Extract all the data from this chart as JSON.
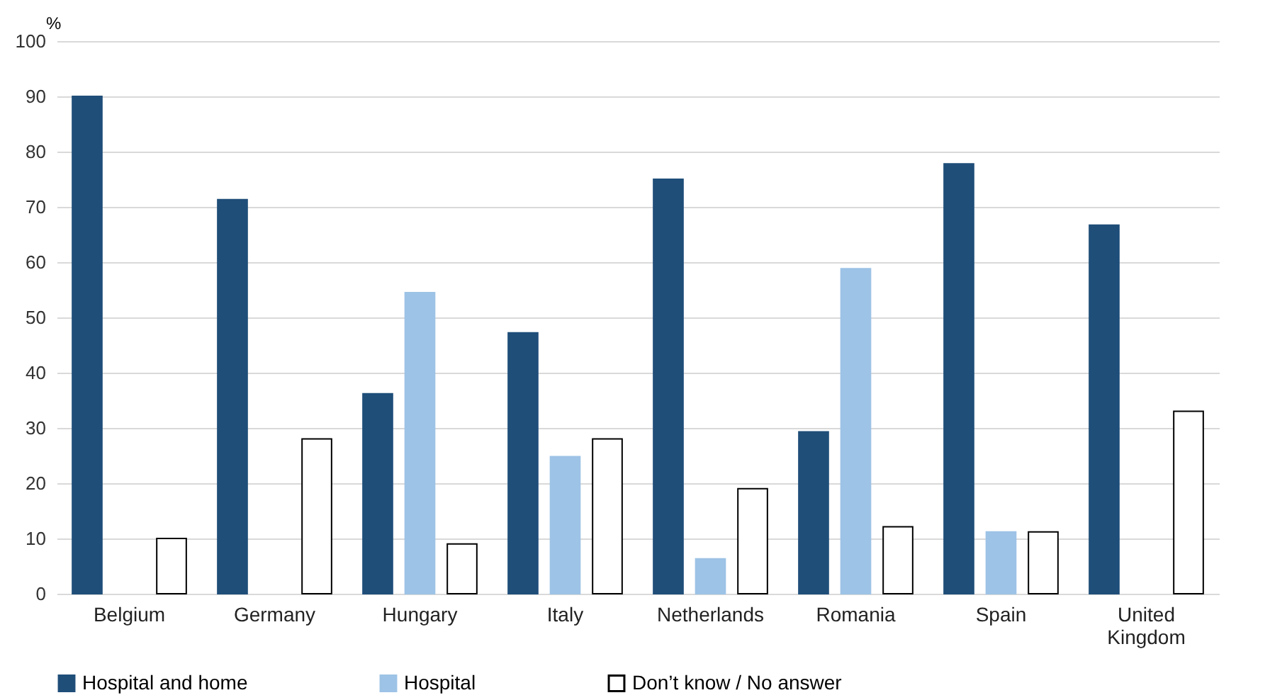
{
  "chart_data": {
    "type": "bar",
    "ylabel": "%",
    "categories": [
      "Belgium",
      "Germany",
      "Hungary",
      "Italy",
      "Netherlands",
      "Romania",
      "Spain",
      "United Kingdom"
    ],
    "series": [
      {
        "name": "Hospital and home",
        "color": "#1f4e79",
        "values": [
          90,
          71.3,
          36.2,
          47.2,
          75,
          29.3,
          77.8,
          66.7
        ]
      },
      {
        "name": "Hospital",
        "color": "#9dc3e6",
        "values": [
          null,
          null,
          54.5,
          24.8,
          6.3,
          58.8,
          11.2,
          null
        ]
      },
      {
        "name": "Don’t know / No answer",
        "color": "#ffffff",
        "values": [
          10,
          28,
          9,
          28,
          19,
          12.1,
          11.2,
          33
        ]
      }
    ],
    "ylim": [
      0,
      100
    ],
    "yticks": [
      0,
      10,
      20,
      30,
      40,
      50,
      60,
      70,
      80,
      90,
      100
    ],
    "grid": "y",
    "legend": "bottom"
  }
}
